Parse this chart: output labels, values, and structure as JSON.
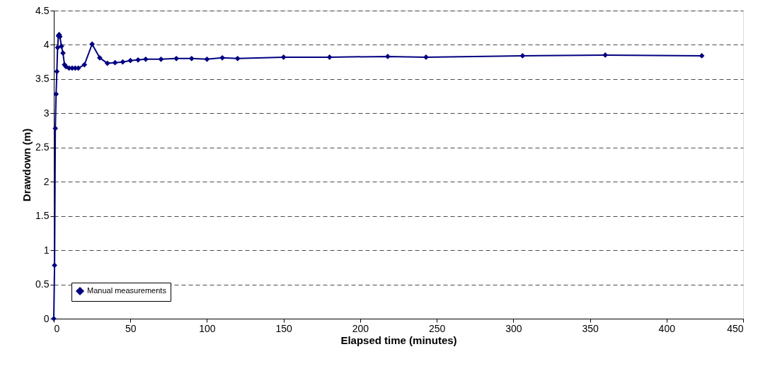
{
  "chart_data": {
    "type": "line",
    "xlabel": "Elapsed time (minutes)",
    "ylabel": "Drawdown (m)",
    "xlim": [
      0,
      450
    ],
    "xticks": [
      0,
      50,
      100,
      150,
      200,
      250,
      300,
      350,
      400,
      450
    ],
    "ylim": [
      0,
      4.5
    ],
    "yticks": [
      0,
      0.5,
      1,
      1.5,
      2,
      2.5,
      3,
      3.5,
      4,
      4.5
    ],
    "grid": "y",
    "legend": "bottom left",
    "marker": "diamond",
    "line_style": "solid",
    "series": [
      {
        "name": "Manual measurements",
        "color": "#000080",
        "x": [
          0,
          0.5,
          1,
          1.5,
          2,
          2.5,
          3,
          3.5,
          4,
          5,
          6,
          7,
          8,
          10,
          12,
          14,
          16,
          20,
          25,
          30,
          35,
          40,
          45,
          50,
          55,
          60,
          70,
          80,
          90,
          100,
          110,
          120,
          150,
          180,
          218,
          243,
          306,
          360,
          423
        ],
        "values": [
          0,
          0.78,
          2.78,
          3.28,
          3.61,
          3.96,
          4.13,
          4.15,
          4.12,
          3.98,
          3.88,
          3.71,
          3.68,
          3.66,
          3.66,
          3.66,
          3.66,
          3.71,
          4.01,
          3.81,
          3.73,
          3.74,
          3.75,
          3.77,
          3.78,
          3.79,
          3.79,
          3.8,
          3.8,
          3.79,
          3.81,
          3.8,
          3.82,
          3.82,
          3.83,
          3.82,
          3.84,
          3.85,
          3.84
        ]
      }
    ]
  }
}
